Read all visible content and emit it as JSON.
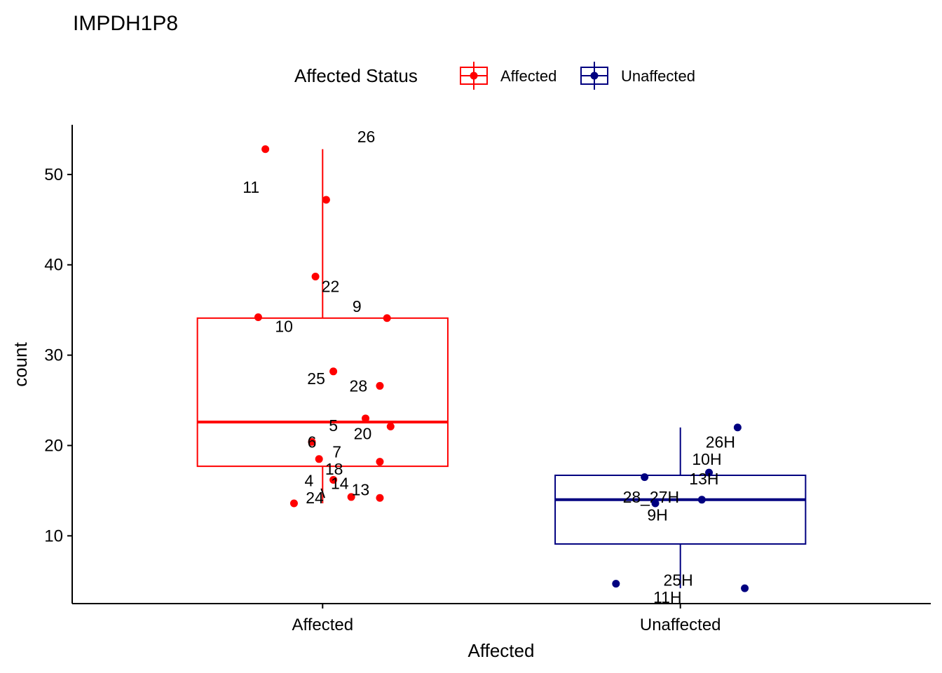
{
  "chart_data": {
    "type": "boxplot",
    "title": "IMPDH1P8",
    "xlabel": "Affected",
    "ylabel": "count",
    "ylim": [
      2.5,
      55.5
    ],
    "yticks": [
      10,
      20,
      30,
      40,
      50
    ],
    "categories": [
      "Affected",
      "Unaffected"
    ],
    "legend": {
      "title": "Affected Status",
      "position": "top",
      "entries": [
        {
          "name": "Affected",
          "color": "#ff0000"
        },
        {
          "name": "Unaffected",
          "color": "#000080"
        }
      ]
    },
    "grid": false,
    "series": [
      {
        "name": "Affected",
        "category": "Affected",
        "color": "#ff0000",
        "box": {
          "whisker_low": 13.6,
          "q1": 17.7,
          "median": 22.6,
          "q3": 34.1,
          "whisker_high": 52.8
        },
        "points": [
          {
            "label": "26",
            "y": 52.8,
            "jitter": -0.16,
            "label_dx": 0.47,
            "label_dy": 1.4
          },
          {
            "label": "11",
            "y": 47.2,
            "jitter": 0.01,
            "label_dx": -0.35,
            "label_dy": 1.4
          },
          {
            "label": "22",
            "y": 38.7,
            "jitter": -0.02,
            "label_dx": 0.07,
            "label_dy": -1.1
          },
          {
            "label": "10",
            "y": 34.2,
            "jitter": -0.18,
            "label_dx": 0.12,
            "label_dy": -1.0
          },
          {
            "label": "9",
            "y": 34.1,
            "jitter": 0.18,
            "label_dx": -0.14,
            "label_dy": 1.3
          },
          {
            "label": "25",
            "y": 28.2,
            "jitter": 0.03,
            "label_dx": -0.08,
            "label_dy": -0.8
          },
          {
            "label": "28",
            "y": 26.6,
            "jitter": 0.16,
            "label_dx": -0.1,
            "label_dy": 0.0
          },
          {
            "label": "5",
            "y": 23.0,
            "jitter": 0.12,
            "label_dx": -0.15,
            "label_dy": -0.8
          },
          {
            "label": "20",
            "y": 22.1,
            "jitter": 0.19,
            "label_dx": -0.13,
            "label_dy": -0.8
          },
          {
            "label": "6",
            "y": 20.4,
            "jitter": -0.03,
            "label_dx": -0.0,
            "label_dy": 0.0
          },
          {
            "label": "18",
            "y": 18.5,
            "jitter": -0.01,
            "label_dx": 0.07,
            "label_dy": -1.1
          },
          {
            "label": "7",
            "y": 18.2,
            "jitter": 0.16,
            "label_dx": -0.2,
            "label_dy": 1.1
          },
          {
            "label": "14",
            "y": 16.2,
            "jitter": 0.03,
            "label_dx": 0.03,
            "label_dy": -0.4
          },
          {
            "label": "24",
            "y": 14.3,
            "jitter": 0.08,
            "label_dx": -0.17,
            "label_dy": -0.1,
            "leader": true
          },
          {
            "label": "13",
            "y": 14.2,
            "jitter": 0.16,
            "label_dx": -0.09,
            "label_dy": 0.9
          },
          {
            "label": "4",
            "y": 13.6,
            "jitter": -0.08,
            "label_dx": 0.07,
            "label_dy": 2.5
          }
        ]
      },
      {
        "name": "Unaffected",
        "category": "Unaffected",
        "color": "#000080",
        "box": {
          "whisker_low": 4.2,
          "q1": 9.1,
          "median": 14.0,
          "q3": 16.7,
          "whisker_high": 22.0
        },
        "points": [
          {
            "label": "26H",
            "y": 22.0,
            "jitter": 0.16,
            "label_dx": -0.08,
            "label_dy": -1.6
          },
          {
            "label": "10H",
            "y": 17.0,
            "jitter": 0.08,
            "label_dx": -0.01,
            "label_dy": 1.5
          },
          {
            "label": "28_27H",
            "y": 16.5,
            "jitter": -0.1,
            "label_dx": 0.03,
            "label_dy": -2.2
          },
          {
            "label": "13H",
            "y": 14.0,
            "jitter": 0.06,
            "label_dx": 0.01,
            "label_dy": 2.3
          },
          {
            "label": "9H",
            "y": 13.6,
            "jitter": -0.07,
            "label_dx": 0.01,
            "label_dy": -1.3
          },
          {
            "label": "11H",
            "y": 4.7,
            "jitter": -0.18,
            "label_dx": 0.24,
            "label_dy": -1.5
          },
          {
            "label": "25H",
            "y": 4.2,
            "jitter": 0.18,
            "label_dx": -0.31,
            "label_dy": 0.9
          }
        ]
      }
    ]
  }
}
